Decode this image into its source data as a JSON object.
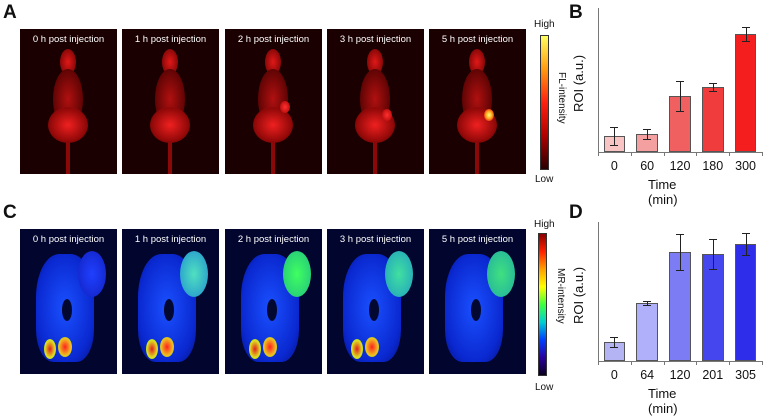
{
  "panels": {
    "A": {
      "letter": "A",
      "captions": [
        "0 h post injection",
        "1 h post injection",
        "2 h post injection",
        "3 h post injection",
        "5 h post injection"
      ],
      "colorbar": {
        "high": "High",
        "low": "Low",
        "label": "FL-intensity",
        "colors": [
          "#ffff60",
          "#ff9a10",
          "#ff2010",
          "#b00000",
          "#2a0000"
        ]
      }
    },
    "B": {
      "letter": "B"
    },
    "C": {
      "letter": "C",
      "captions": [
        "0 h post injection",
        "1 h post injection",
        "2 h post injection",
        "3 h post injection",
        "5 h post injection"
      ],
      "colorbar": {
        "high": "High",
        "low": "Low",
        "label": "MR-intensity",
        "colors": [
          "#8b0000",
          "#ff2000",
          "#ffa000",
          "#ffff00",
          "#40ff40",
          "#00d0d0",
          "#0040ff",
          "#2a00a0",
          "#0a0020"
        ]
      }
    },
    "D": {
      "letter": "D"
    }
  },
  "chart_data": [
    {
      "id": "B",
      "type": "bar",
      "title": "",
      "xlabel": "Time (min)",
      "ylabel": "ROI (a.u.)",
      "categories": [
        "0",
        "60",
        "120",
        "180",
        "300"
      ],
      "values": [
        16,
        18,
        56,
        65,
        118
      ],
      "errors": [
        9,
        5,
        15,
        4,
        7
      ],
      "ylim": [
        0,
        144
      ],
      "bar_colors": [
        "#f8c4c4",
        "#f4a0a0",
        "#f06060",
        "#f03c3c",
        "#f41e1e"
      ],
      "grid": false,
      "note": "values in relative units (axis has no numeric ticks)"
    },
    {
      "id": "D",
      "type": "bar",
      "title": "",
      "xlabel": "Time (min)",
      "ylabel": "ROI (a.u.)",
      "categories": [
        "0",
        "64",
        "120",
        "201",
        "305"
      ],
      "values": [
        19,
        58,
        109,
        107,
        117
      ],
      "errors": [
        5,
        2,
        18,
        15,
        11
      ],
      "ylim": [
        0,
        139
      ],
      "bar_colors": [
        "#b4b4f4",
        "#b0b0fa",
        "#7c7cf4",
        "#4646ee",
        "#2e2eea"
      ],
      "grid": false,
      "note": "values in relative units (axis has no numeric ticks)"
    }
  ]
}
